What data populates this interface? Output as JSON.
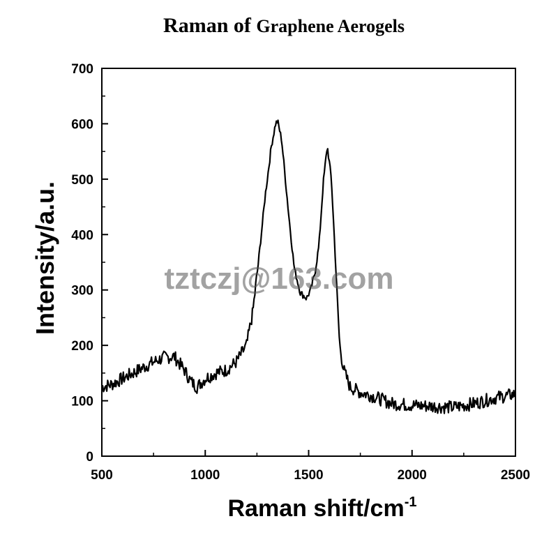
{
  "chart_data": {
    "type": "line",
    "title_part1": "Raman of ",
    "title_part2": "Graphene Aerogels",
    "xlabel": "Raman shift/cm",
    "xlabel_sup": "-1",
    "ylabel": "Intensity/a.u.",
    "xlim": [
      500,
      2500
    ],
    "ylim": [
      0,
      700
    ],
    "x_ticks": [
      "500",
      "1000",
      "1500",
      "2000",
      "2500"
    ],
    "y_ticks": [
      "0",
      "100",
      "200",
      "300",
      "400",
      "500",
      "600",
      "700"
    ],
    "grid": false,
    "series": [
      {
        "color": "#000000",
        "x": [
          500,
          550,
          600,
          650,
          700,
          750,
          800,
          850,
          900,
          930,
          960,
          1000,
          1050,
          1100,
          1150,
          1200,
          1230,
          1260,
          1290,
          1320,
          1340,
          1350,
          1370,
          1400,
          1430,
          1460,
          1490,
          1510,
          1530,
          1550,
          1570,
          1590,
          1610,
          1630,
          1650,
          1670,
          1700,
          1750,
          1800,
          1900,
          2000,
          2100,
          2200,
          2300,
          2400,
          2500
        ],
        "y": [
          125,
          130,
          140,
          150,
          160,
          170,
          178,
          180,
          155,
          135,
          125,
          140,
          150,
          155,
          170,
          200,
          260,
          360,
          470,
          560,
          600,
          605,
          570,
          450,
          340,
          295,
          285,
          300,
          330,
          380,
          490,
          560,
          500,
          350,
          200,
          155,
          125,
          115,
          110,
          95,
          92,
          90,
          88,
          95,
          105,
          112
        ]
      }
    ]
  },
  "watermark": "tztczj@163.com"
}
